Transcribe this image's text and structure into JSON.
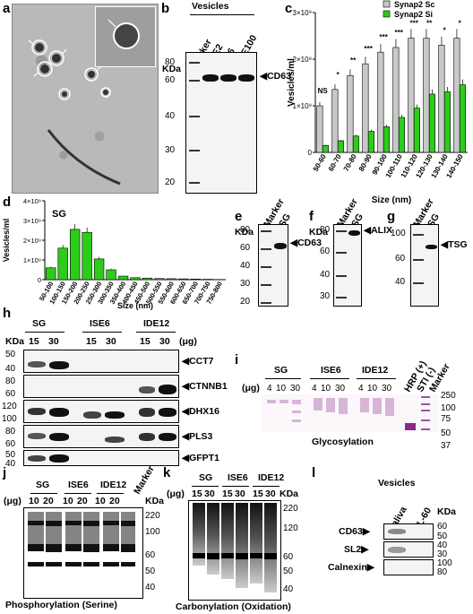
{
  "panels": {
    "a": "a",
    "b": "b",
    "c": "c",
    "d": "d",
    "e": "e",
    "f": "f",
    "g": "g",
    "h": "h",
    "i": "i",
    "j": "j",
    "k": "k",
    "l": "l"
  },
  "b": {
    "title": "Vesicles",
    "kda": "KDa",
    "lanes": [
      "Marker",
      "AAE2",
      "ISE6",
      "DAE100"
    ],
    "markers": [
      "80",
      "60",
      "40",
      "30",
      "20"
    ],
    "target": "CD63"
  },
  "e": {
    "kda": "KDa",
    "lanes": [
      "Marker",
      "SG"
    ],
    "markers": [
      "80",
      "60",
      "40",
      "30",
      "20"
    ],
    "target": "CD63"
  },
  "f": {
    "kda": "KDa",
    "lanes": [
      "Marker",
      "SG"
    ],
    "markers": [
      "80",
      "60",
      "40",
      "30"
    ],
    "target": "ALIX"
  },
  "g": {
    "kda": "KDa",
    "lanes": [
      "Marker",
      "SG"
    ],
    "markers": [
      "100",
      "60",
      "40"
    ],
    "target": "TSG"
  },
  "h": {
    "kda": "KDa",
    "groups": [
      "SG",
      "ISE6",
      "IDE12"
    ],
    "loads": [
      "15",
      "30",
      "15",
      "30",
      "15",
      "30"
    ],
    "unit": "(μg)",
    "rows": [
      {
        "target": "CCT7",
        "markers": [
          "50",
          "40"
        ]
      },
      {
        "target": "CTNNB1",
        "markers": [
          "80",
          "60"
        ]
      },
      {
        "target": "DHX16",
        "markers": [
          "120",
          "100"
        ]
      },
      {
        "target": "PLS3",
        "markers": [
          "80",
          "60"
        ]
      },
      {
        "target": "GFPT1",
        "markers": [
          "50",
          "40"
        ]
      }
    ]
  },
  "i": {
    "unit": "(μg)",
    "groups": [
      "SG",
      "ISE6",
      "IDE12"
    ],
    "loads": [
      "4",
      "10",
      "30",
      "4",
      "10",
      "30",
      "4",
      "10",
      "30"
    ],
    "extra_lanes": [
      "HRP (+)",
      "STI (-)",
      "Marker"
    ],
    "markers": [
      "250",
      "100",
      "75",
      "50",
      "37"
    ],
    "caption": "Glycosylation"
  },
  "j": {
    "unit": "(μg)",
    "groups": [
      "SG",
      "ISE6",
      "IDE12"
    ],
    "loads": [
      "10",
      "20",
      "10",
      "20",
      "10",
      "20"
    ],
    "marker_lane": "Marker",
    "kda": "KDa",
    "markers": [
      "220",
      "100",
      "60",
      "50",
      "40"
    ],
    "caption": "Phosphorylation (Serine)"
  },
  "k": {
    "unit": "(μg)",
    "groups": [
      "SG",
      "ISE6",
      "IDE12"
    ],
    "loads": [
      "15",
      "30",
      "15",
      "30",
      "15",
      "30"
    ],
    "kda": "KDa",
    "markers": [
      "220",
      "120",
      "60",
      "50",
      "40"
    ],
    "caption": "Carbonylation (Oxidation)"
  },
  "l": {
    "title": "Vesicles",
    "lanes": [
      "Saliva",
      "HL-60"
    ],
    "kda": "KDa",
    "rows": [
      {
        "target": "CD63",
        "markers": [
          "60",
          "50"
        ]
      },
      {
        "target": "SL2",
        "markers": [
          "40",
          "30"
        ]
      },
      {
        "target": "Calnexin",
        "markers": [
          "100",
          "80"
        ]
      }
    ]
  },
  "chart_data": [
    {
      "panel": "c",
      "type": "bar",
      "ylabel": "Vesicles/ml",
      "xlabel": "Size (nm)",
      "ylim": [
        0,
        3000000000
      ],
      "y_ticks": [
        "0",
        "1×10⁹",
        "2×10⁹",
        "3×10⁹"
      ],
      "categories": [
        "50-60",
        "60-70",
        "70-80",
        "80-90",
        "90-100",
        "100-110",
        "110-120",
        "120-130",
        "130-140",
        "140-150"
      ],
      "series": [
        {
          "name": "Synap2 Sc",
          "color": "#c8c8c8",
          "values": [
            1000000000,
            1350000000,
            1650000000,
            1900000000,
            2150000000,
            2250000000,
            2450000000,
            2450000000,
            2300000000,
            2450000000
          ]
        },
        {
          "name": "Synap2 Si",
          "color": "#2ecc1a",
          "values": [
            150000000,
            250000000,
            350000000,
            450000000,
            550000000,
            750000000,
            950000000,
            1250000000,
            1300000000,
            1450000000
          ]
        }
      ],
      "significance": [
        "NS",
        "*",
        "**",
        "***",
        "***",
        "***",
        "***",
        "**",
        "*",
        "*"
      ],
      "legend": "top-right"
    },
    {
      "panel": "d",
      "type": "bar",
      "title": "SG",
      "ylabel": "Vesicles/ml",
      "xlabel": "Size (nm)",
      "ylim": [
        0,
        4000000000
      ],
      "y_ticks": [
        "0",
        "1×10⁹",
        "2×10⁹",
        "3×10⁹",
        "4×10⁹"
      ],
      "categories": [
        "50-100",
        "100-150",
        "150-200",
        "200-250",
        "250-300",
        "300-350",
        "350-400",
        "400-450",
        "450-500",
        "500-550",
        "550-600",
        "600-650",
        "650-700",
        "700-750",
        "750-800"
      ],
      "series": [
        {
          "name": "SG",
          "color": "#2ecc1a",
          "values": [
            600000000,
            1600000000,
            2550000000,
            2400000000,
            1050000000,
            500000000,
            180000000,
            100000000,
            80000000,
            60000000,
            50000000,
            40000000,
            30000000,
            20000000,
            10000000
          ]
        }
      ]
    }
  ]
}
